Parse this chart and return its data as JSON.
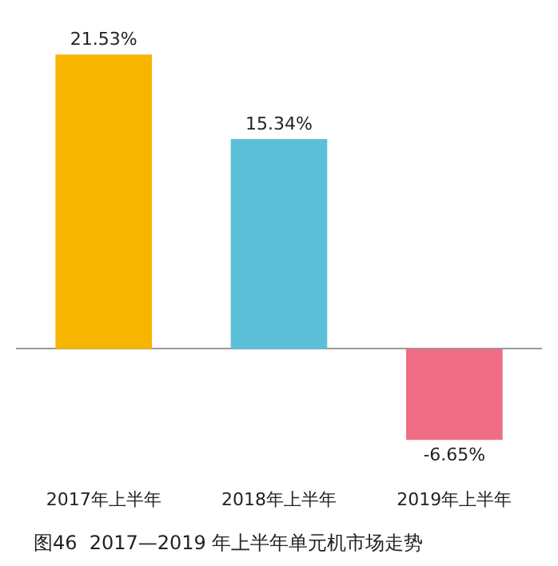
{
  "chart_data": {
    "type": "bar",
    "title": "图46  2017—2019 年上半年单元机市场走势",
    "categories": [
      "2017年上半年",
      "2018年上半年",
      "2019年上半年"
    ],
    "values": [
      21.53,
      15.34,
      -6.65
    ],
    "colors": [
      "#f7b500",
      "#5cbfd8",
      "#ee6d84"
    ],
    "value_labels": [
      "21.53%",
      "15.34%",
      "-6.65%"
    ],
    "grid": false
  }
}
